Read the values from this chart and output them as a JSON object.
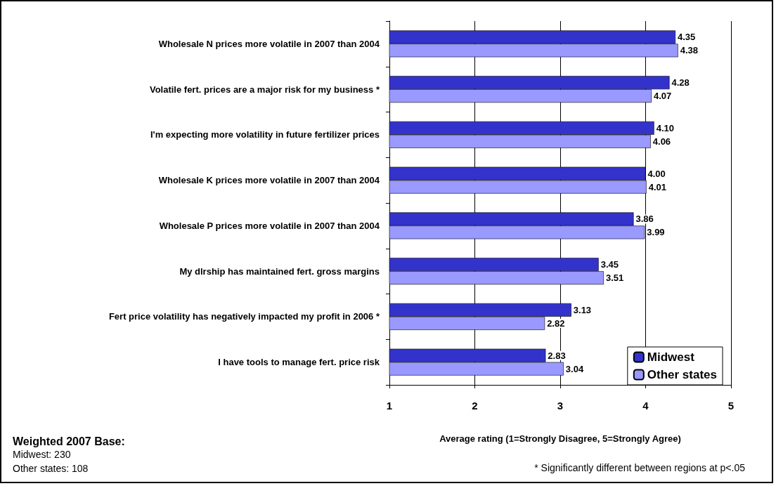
{
  "chart_data": {
    "type": "bar",
    "orientation": "horizontal",
    "categories": [
      "Wholesale N prices more volatile in 2007 than 2004",
      "Volatile fert. prices are a major risk for my business *",
      "I'm expecting more volatility in future fertilizer prices",
      "Wholesale K prices more volatile in 2007 than 2004",
      "Wholesale P prices more volatile in 2007 than 2004",
      "My dlrship has maintained fert. gross margins",
      "Fert price volatility has negatively impacted my profit in 2006 *",
      "I have tools to manage fert. price risk"
    ],
    "series": [
      {
        "name": "Midwest",
        "color": "#3333cc",
        "values": [
          4.35,
          4.28,
          4.1,
          4.0,
          3.86,
          3.45,
          3.13,
          2.83
        ],
        "value_labels": [
          "4.35",
          "4.28",
          "4.10",
          "4.00",
          "3.86",
          "3.45",
          "3.13",
          "2.83"
        ]
      },
      {
        "name": "Other states",
        "color": "#9999ff",
        "values": [
          4.38,
          4.07,
          4.06,
          4.01,
          3.99,
          3.51,
          2.82,
          3.04
        ],
        "value_labels": [
          "4.38",
          "4.07",
          "4.06",
          "4.01",
          "3.99",
          "3.51",
          "2.82",
          "3.04"
        ]
      }
    ],
    "xlim": [
      1,
      5
    ],
    "xticks": [
      1,
      2,
      3,
      4,
      5
    ],
    "grid": "x",
    "legend": "bottom right",
    "xlabel": "Average rating (1=Strongly Disagree, 5=Strongly Agree)",
    "annotations": [
      "Weighted 2007 Base:",
      "Midwest: 230",
      "Other states: 108",
      "* Significantly different between regions at p<.05"
    ]
  }
}
